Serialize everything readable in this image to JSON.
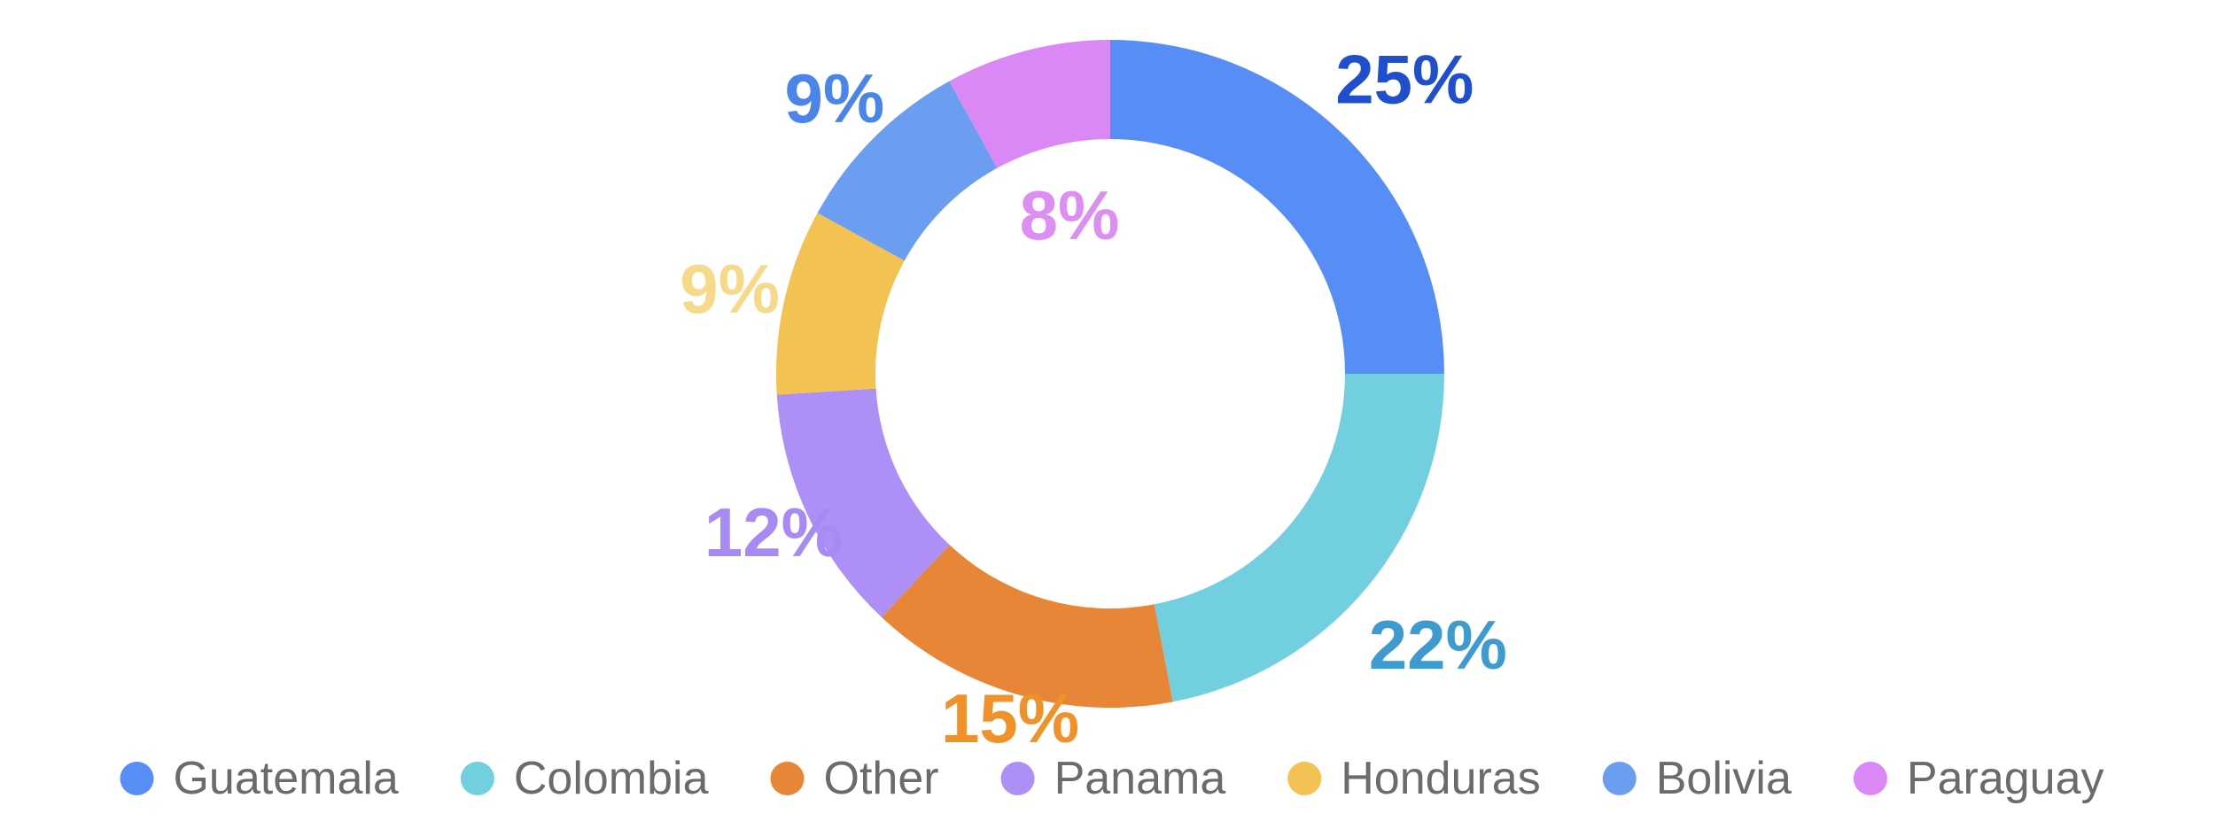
{
  "chart_data": {
    "type": "pie",
    "donut": true,
    "title": "",
    "unit": "%",
    "legend_position": "bottom",
    "categories": [
      "Guatemala",
      "Colombia",
      "Other",
      "Panama",
      "Honduras",
      "Bolivia",
      "Paraguay"
    ],
    "values": [
      25,
      22,
      15,
      12,
      9,
      9,
      8
    ],
    "labels": [
      "25%",
      "22%",
      "15%",
      "12%",
      "9%",
      "9%",
      "8%"
    ],
    "colors": [
      "#568ef6",
      "#72cfe0",
      "#e88637",
      "#ad8ff5",
      "#f2c252",
      "#6b9ef0",
      "#da88f5"
    ],
    "label_colors": [
      "#1f4fcc",
      "#3d9bd0",
      "#f0922a",
      "#a88af5",
      "#f7d98a",
      "#4a86ea",
      "#dc8ef2"
    ]
  }
}
